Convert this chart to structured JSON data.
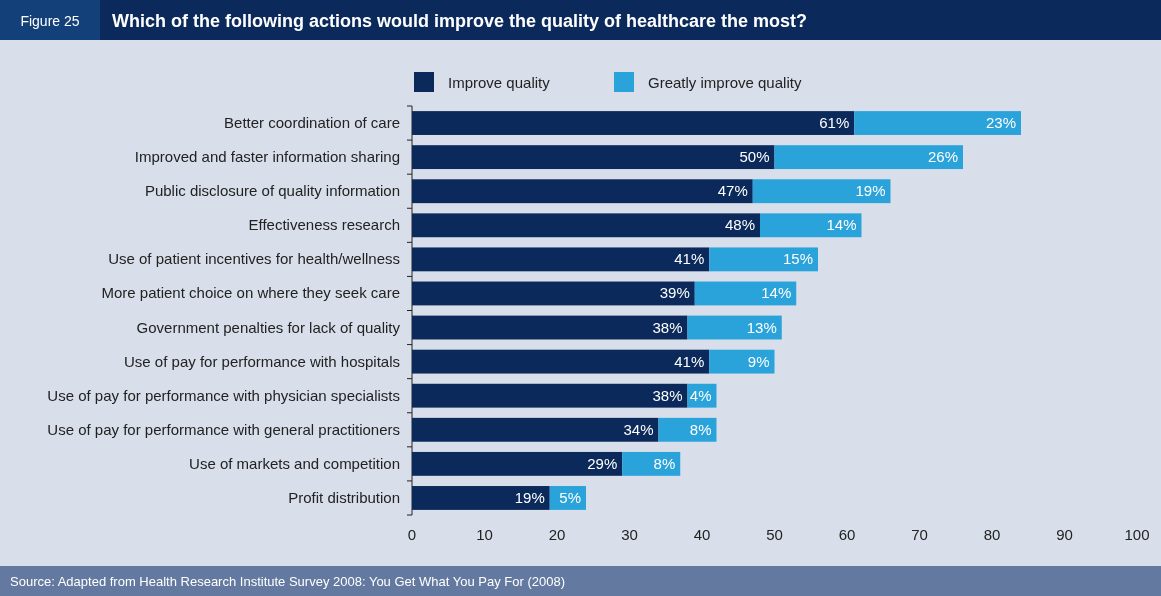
{
  "chart_data": {
    "type": "bar",
    "orientation": "horizontal",
    "stacked": true,
    "title": "Which of the following actions would improve the quality of healthcare the most?",
    "annotations": [
      "Figure 25",
      "Source: Adapted from Health Research Institute Survey 2008: You Get What You Pay For (2008)"
    ],
    "categories": [
      "Better coordination of care",
      "Improved and faster information sharing",
      "Public disclosure of quality information",
      "Effectiveness research",
      "Use of patient incentives for health/wellness",
      "More patient choice on where they seek care",
      "Government penalties for lack of quality",
      "Use of pay for performance with hospitals",
      "Use of pay for performance with physician specialists",
      "Use of pay for performance with general practitioners",
      "Use of markets and competition",
      "Profit distribution"
    ],
    "series": [
      {
        "name": "Improve quality",
        "color": "#0b2a5b",
        "values": [
          61,
          50,
          47,
          48,
          41,
          39,
          38,
          41,
          38,
          34,
          29,
          19
        ],
        "value_labels": [
          "61%",
          "50%",
          "47%",
          "48%",
          "41%",
          "39%",
          "38%",
          "41%",
          "38%",
          "34%",
          "29%",
          "19%"
        ]
      },
      {
        "name": "Greatly improve quality",
        "color": "#2aa3db",
        "values": [
          23,
          26,
          19,
          14,
          15,
          14,
          13,
          9,
          4,
          8,
          8,
          5
        ],
        "value_labels": [
          "23%",
          "26%",
          "19%",
          "14%",
          "15%",
          "14%",
          "13%",
          "9%",
          "4%",
          "8%",
          "8%",
          "5%"
        ]
      }
    ],
    "xlim": [
      0,
      100
    ],
    "xticks": [
      0,
      10,
      20,
      30,
      40,
      50,
      60,
      70,
      80,
      90,
      100
    ],
    "legend": "top"
  }
}
